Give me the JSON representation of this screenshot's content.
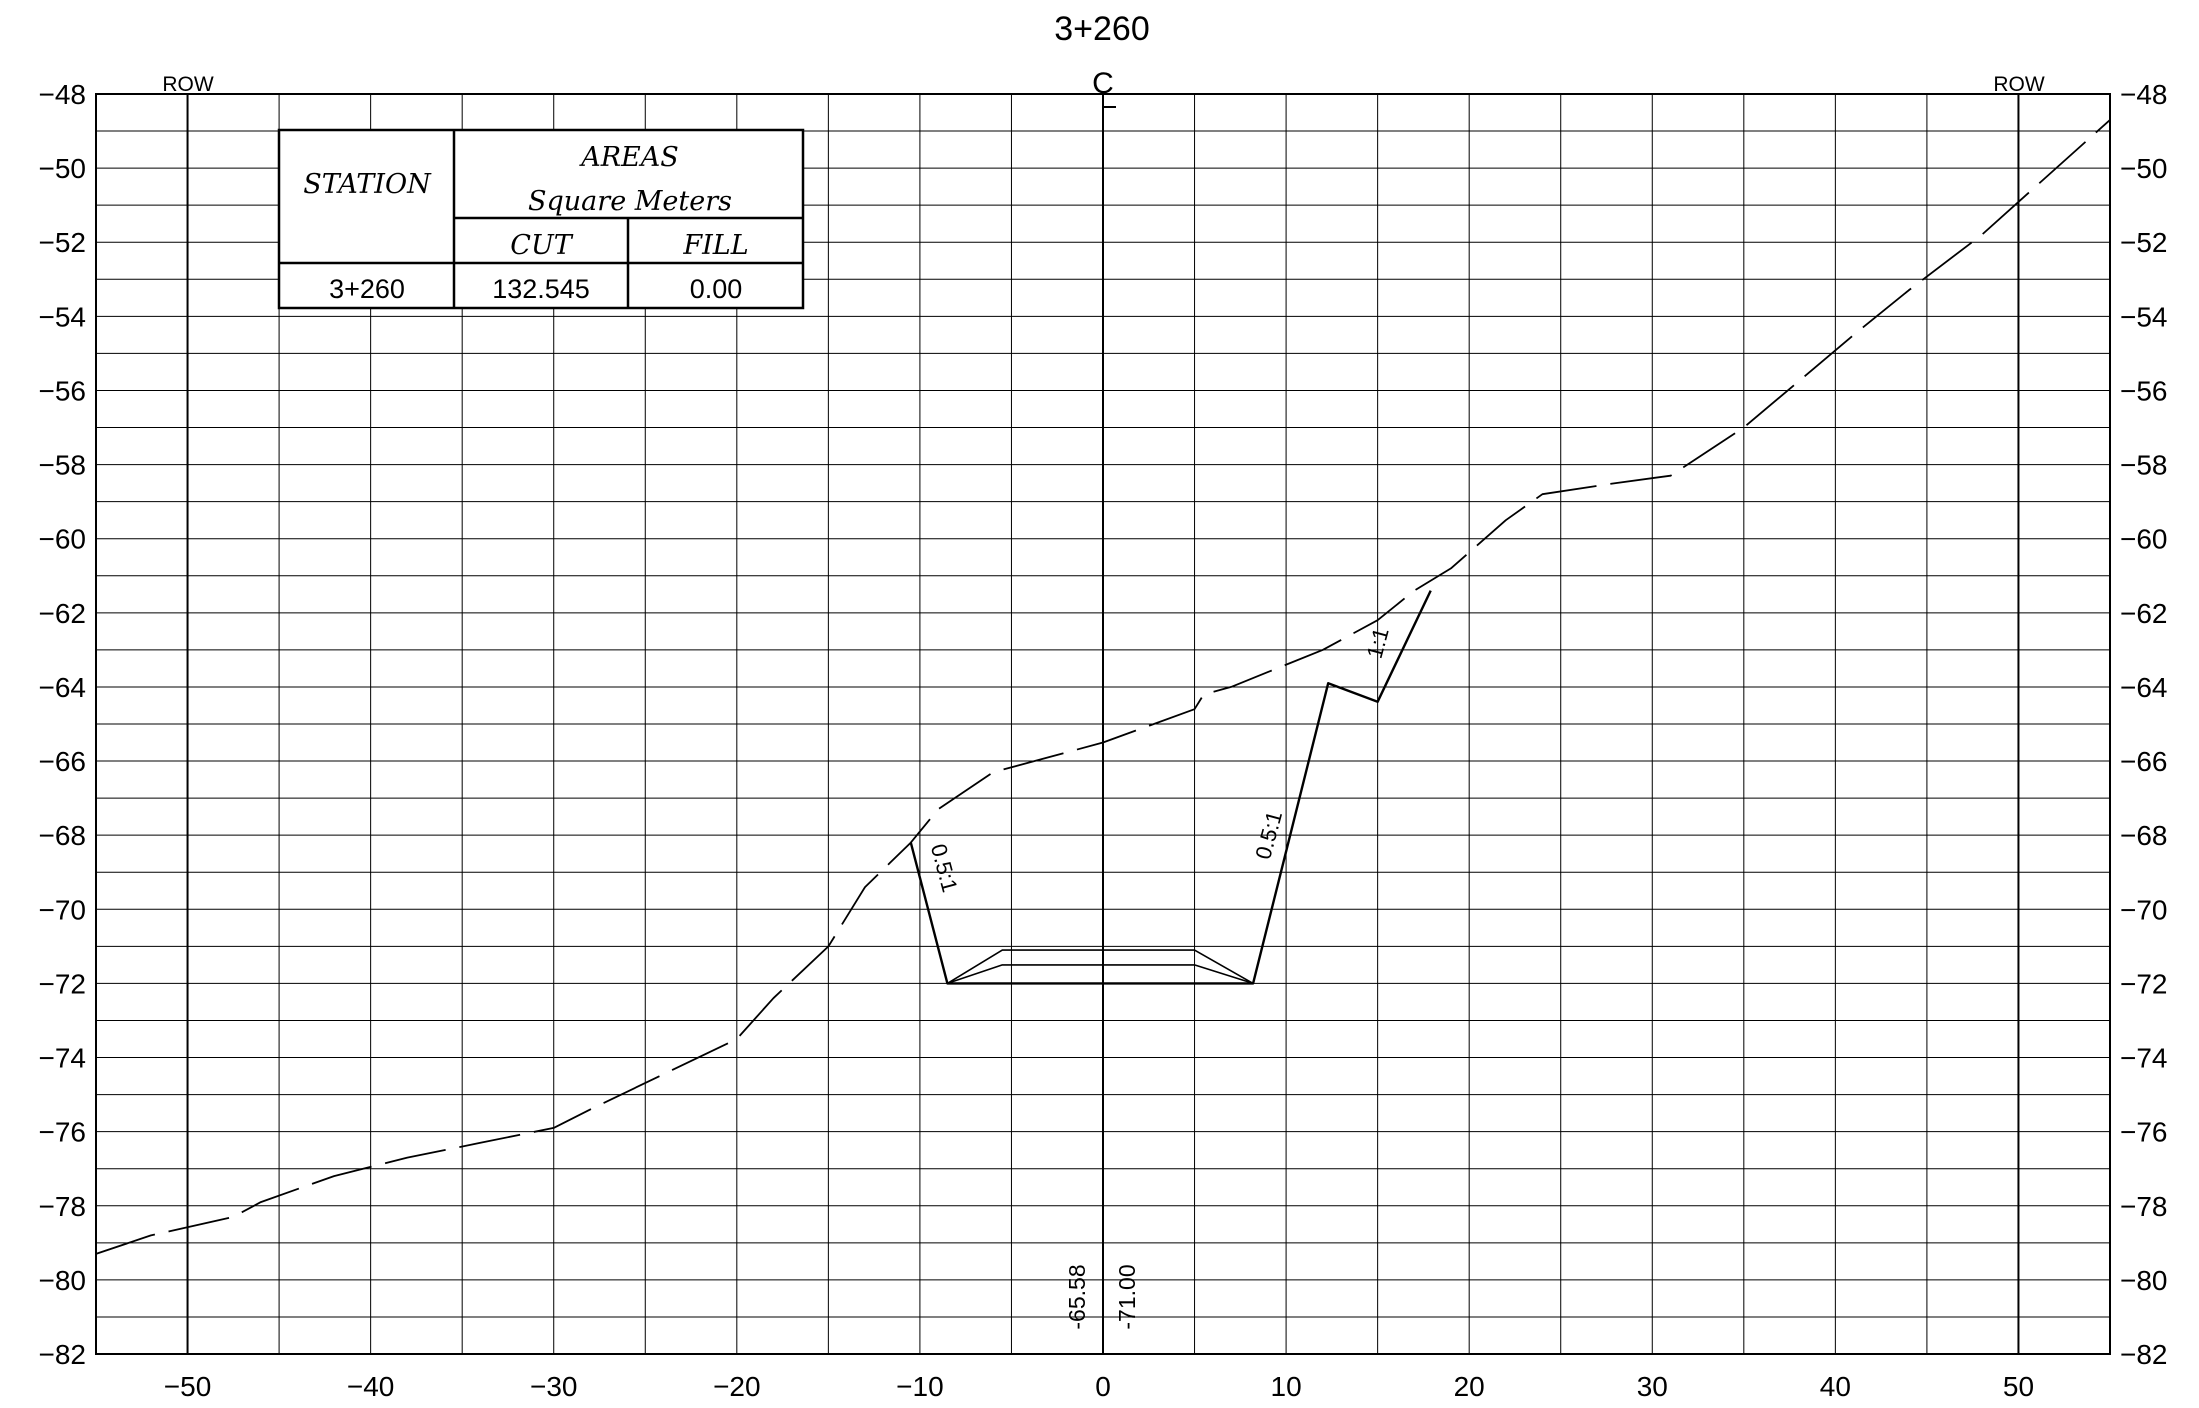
{
  "title": "3+260",
  "row_label_left": "ROW",
  "row_label_right": "ROW",
  "centerline_symbol": "C",
  "areas_table": {
    "header_station": "STATION",
    "header_areas": "AREAS",
    "header_units": "Square Meters",
    "header_cut": "CUT",
    "header_fill": "FILL",
    "station": "3+260",
    "cut": "132.545",
    "fill": "0.00"
  },
  "slope_labels": {
    "left": "0.5:1",
    "right": "0.5:1",
    "upper": "1:1"
  },
  "centerline_elevations": {
    "ground": "-65.58",
    "design": "-71.00"
  },
  "chart_data": {
    "type": "line",
    "title": "3+260",
    "xlabel": "",
    "ylabel": "",
    "xlim": [
      -55,
      55
    ],
    "ylim": [
      -82,
      -48
    ],
    "x_ticks": [
      -50,
      -40,
      -30,
      -20,
      -10,
      0,
      10,
      20,
      30,
      40,
      50
    ],
    "y_ticks": [
      -48,
      -50,
      -52,
      -54,
      -56,
      -58,
      -60,
      -62,
      -64,
      -66,
      -68,
      -70,
      -72,
      -74,
      -76,
      -78,
      -80,
      -82
    ],
    "grid": true,
    "row_offsets": [
      -50,
      50
    ],
    "series": [
      {
        "style": "dashed",
        "x": [
          -55,
          -52,
          -47.5,
          -46,
          -42,
          -38,
          -34,
          -30,
          -28,
          -20,
          -18,
          -15,
          -13,
          -10.5,
          -9,
          -6,
          -3,
          0,
          5,
          5.5,
          7,
          9,
          12,
          15,
          17,
          19,
          22,
          24,
          28,
          31,
          35,
          41,
          44,
          48,
          55
        ],
        "y": [
          -79.3,
          -78.8,
          -78.3,
          -77.9,
          -77.2,
          -76.7,
          -76.3,
          -75.9,
          -75.4,
          -73.5,
          -72.4,
          -71.0,
          -69.4,
          -68.2,
          -67.3,
          -66.3,
          -65.9,
          -65.5,
          -64.6,
          -64.2,
          -64.0,
          -63.6,
          -63.0,
          -62.2,
          -61.4,
          -60.8,
          -59.5,
          -58.8,
          -58.5,
          -58.3,
          -57.0,
          -54.5,
          -53.3,
          -51.8,
          -48.7
        ]
      },
      {
        "style": "solid",
        "x": [
          -10.5,
          -8.5,
          8.2,
          12.3,
          15,
          17.9
        ],
        "y": [
          -68.2,
          -72.0,
          -72.0,
          -63.9,
          -64.4,
          -61.4
        ]
      },
      {
        "style": "solid",
        "x": [
          -8.5,
          -5.5,
          5,
          8.2
        ],
        "y": [
          -72.0,
          -71.1,
          -71.1,
          -72.0
        ]
      },
      {
        "style": "solid",
        "x": [
          -8.5,
          -5.5,
          5,
          8.2
        ],
        "y": [
          -72.0,
          -71.5,
          -71.5,
          -72.0
        ]
      }
    ]
  }
}
